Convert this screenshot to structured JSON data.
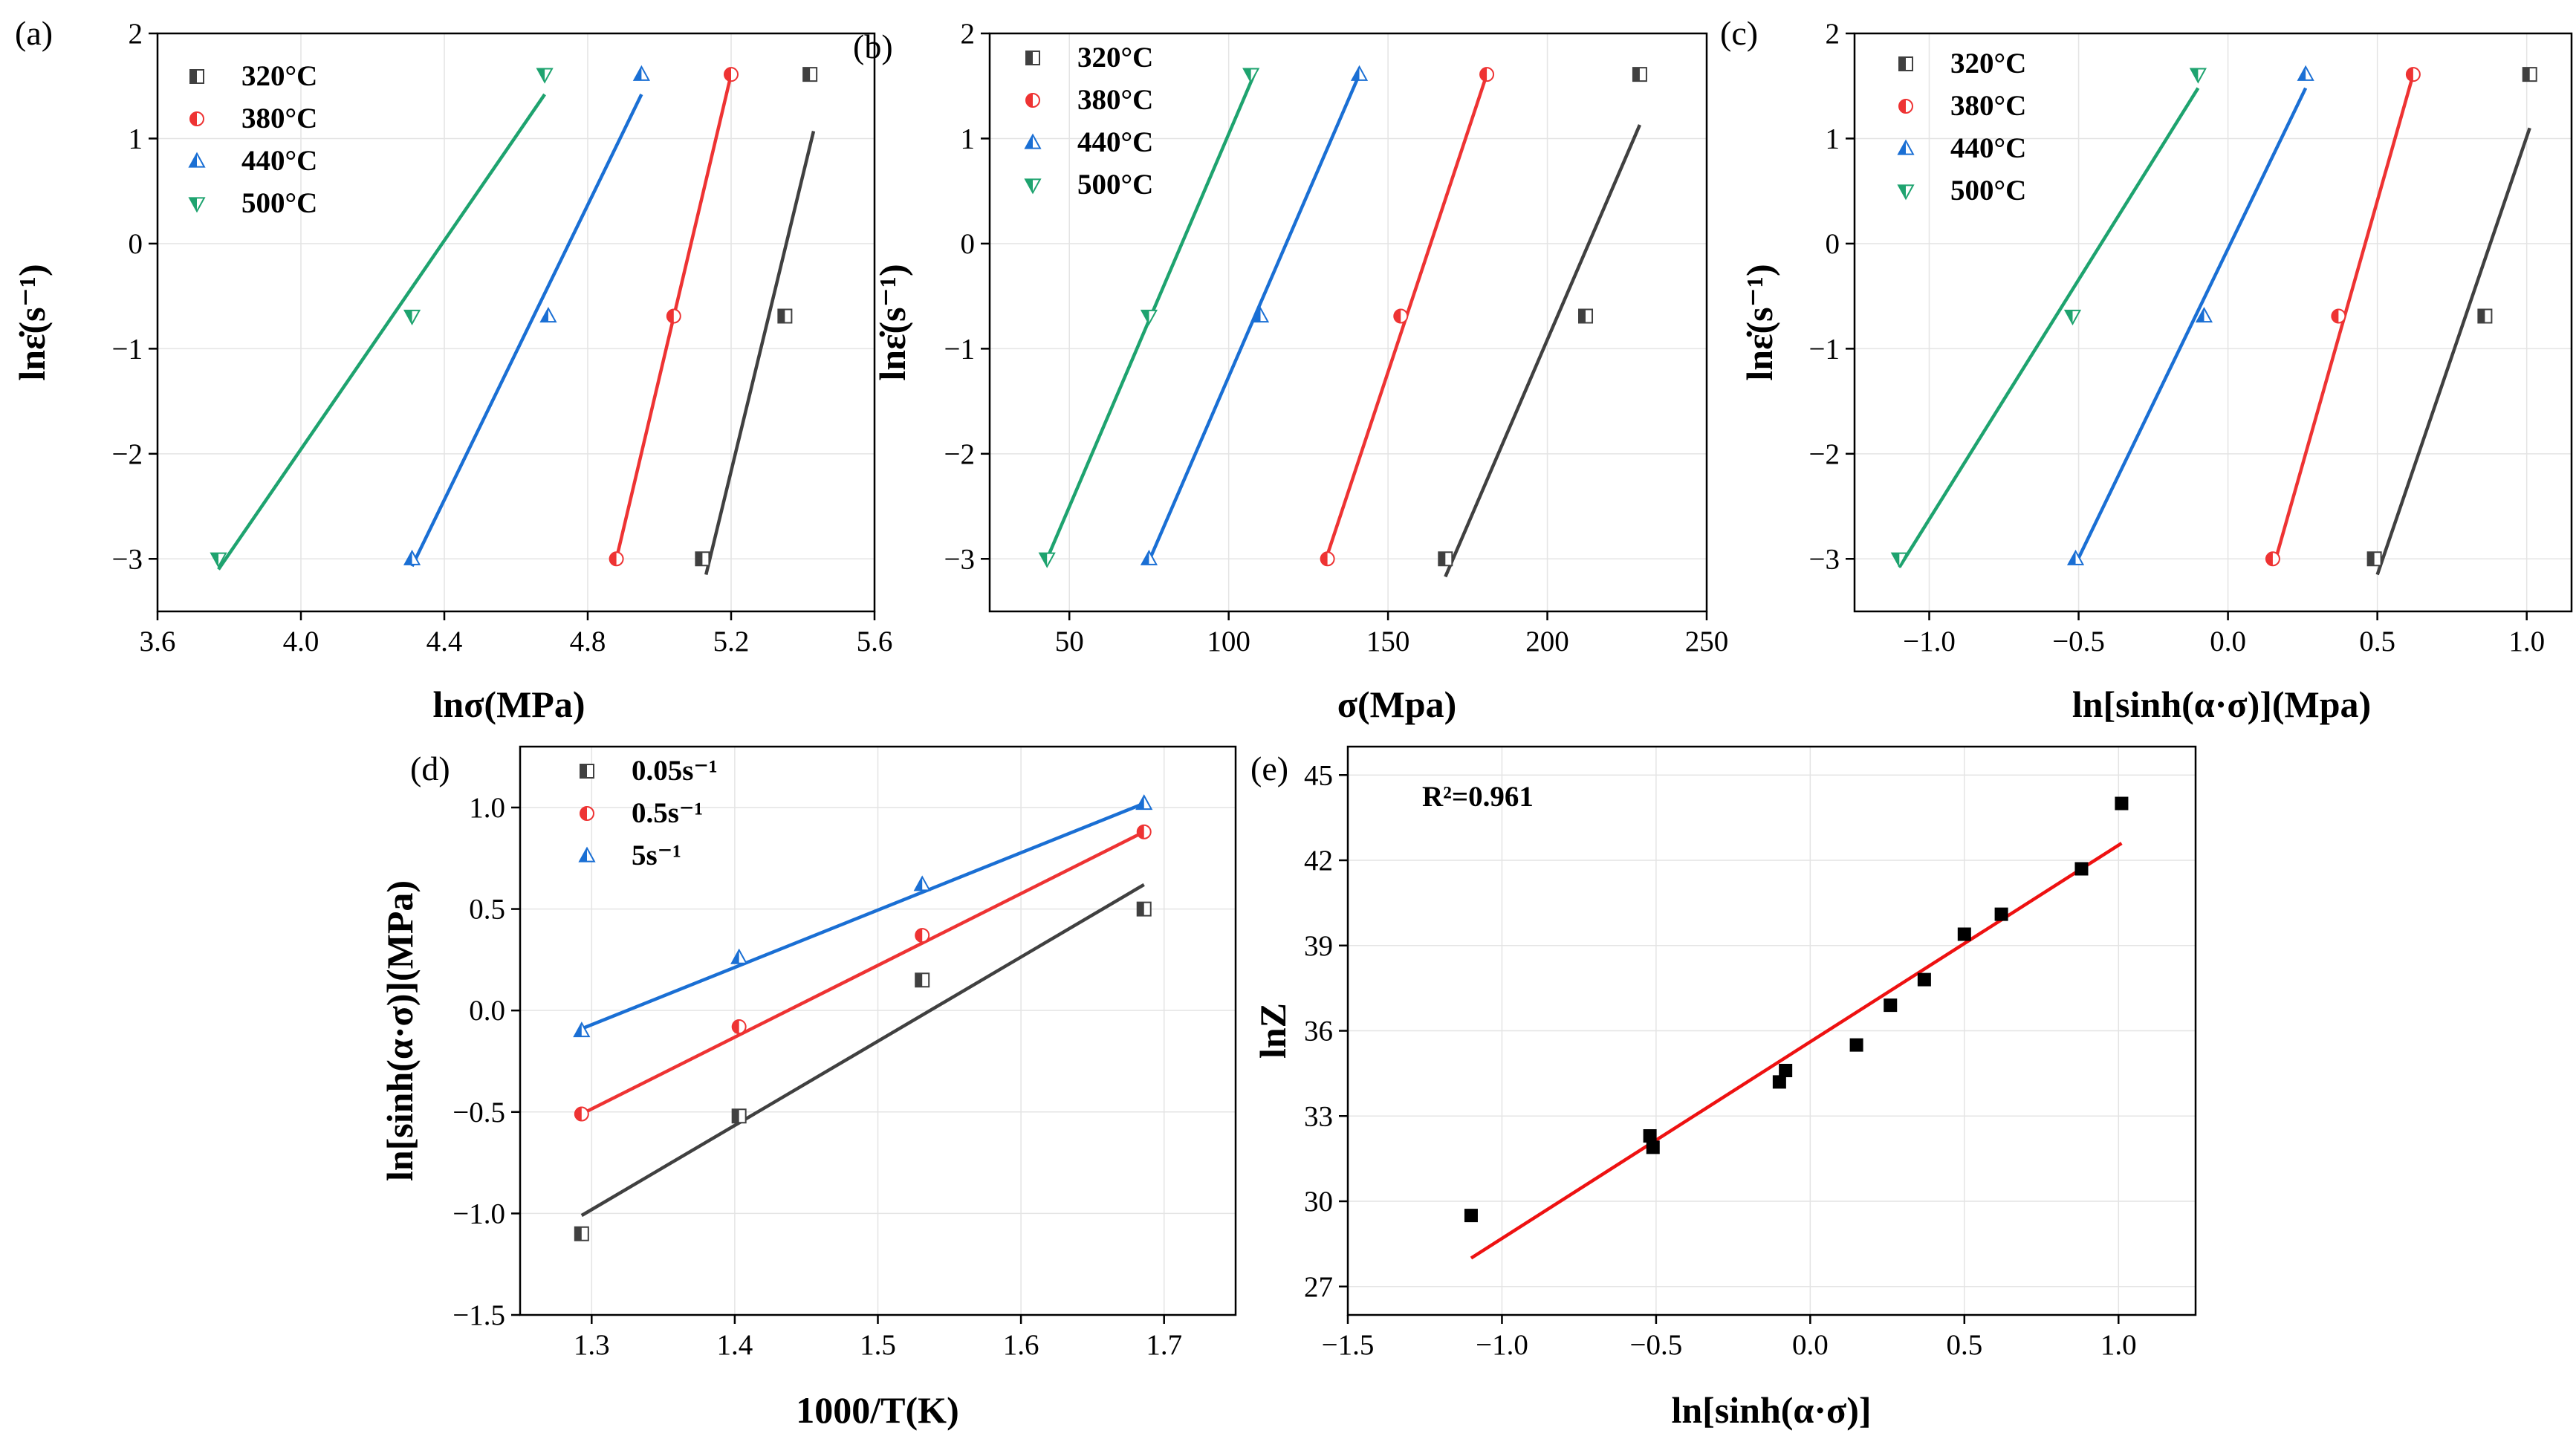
{
  "chart_data": [
    {
      "panel": "(a)",
      "type": "scatter",
      "xlabel": "lnσ(MPa)",
      "ylabel": "lnε̇(s⁻¹)",
      "xlim": [
        3.6,
        5.6
      ],
      "ylim": [
        -3.5,
        2
      ],
      "xticks": [
        "3.6",
        "4.0",
        "4.4",
        "4.8",
        "5.2",
        "5.6"
      ],
      "yticks": [
        "2",
        "1",
        "0",
        "−1",
        "−2",
        "−3"
      ],
      "grid": true,
      "legend": "top-left",
      "series": [
        {
          "name": "320°C",
          "color": "#404040",
          "marker": "square-half",
          "x": [
            5.12,
            5.35,
            5.42
          ],
          "y": [
            -3.0,
            -0.69,
            1.61
          ],
          "fit": [
            [
              5.13,
              -3.15
            ],
            [
              5.43,
              1.07
            ]
          ]
        },
        {
          "name": "380°C",
          "color": "#ee3333",
          "marker": "circle-half",
          "x": [
            4.88,
            5.04,
            5.2
          ],
          "y": [
            -3.0,
            -0.69,
            1.61
          ],
          "fit": [
            [
              4.88,
              -3.0
            ],
            [
              5.2,
              1.61
            ]
          ]
        },
        {
          "name": "440°C",
          "color": "#1a6fd4",
          "marker": "triangle-up-half",
          "x": [
            4.31,
            4.69,
            4.95
          ],
          "y": [
            -3.0,
            -0.69,
            1.61
          ],
          "fit": [
            [
              4.31,
              -3.07
            ],
            [
              4.95,
              1.42
            ]
          ]
        },
        {
          "name": "500°C",
          "color": "#1ea36f",
          "marker": "triangle-down-half",
          "x": [
            3.77,
            4.31,
            4.68
          ],
          "y": [
            -3.0,
            -0.69,
            1.61
          ],
          "fit": [
            [
              3.77,
              -3.1
            ],
            [
              4.68,
              1.42
            ]
          ]
        }
      ]
    },
    {
      "panel": "(b)",
      "type": "scatter",
      "xlabel": "σ(Mpa)",
      "ylabel": "lnε̇(s⁻¹)",
      "xlim": [
        25,
        250
      ],
      "ylim": [
        -3.5,
        2
      ],
      "xticks": [
        "50",
        "100",
        "150",
        "200",
        "250"
      ],
      "yticks": [
        "2",
        "1",
        "0",
        "−1",
        "−2",
        "−3"
      ],
      "grid": true,
      "legend": "top-left",
      "series": [
        {
          "name": "320°C",
          "color": "#404040",
          "marker": "square-half",
          "x": [
            168,
            212,
            229
          ],
          "y": [
            -3.0,
            -0.69,
            1.61
          ],
          "fit": [
            [
              168,
              -3.17
            ],
            [
              229,
              1.13
            ]
          ]
        },
        {
          "name": "380°C",
          "color": "#ee3333",
          "marker": "circle-half",
          "x": [
            131,
            154,
            181
          ],
          "y": [
            -3.0,
            -0.69,
            1.61
          ],
          "fit": [
            [
              130,
              -3.05
            ],
            [
              181,
              1.61
            ]
          ]
        },
        {
          "name": "440°C",
          "color": "#1a6fd4",
          "marker": "triangle-up-half",
          "x": [
            75,
            110,
            141
          ],
          "y": [
            -3.0,
            -0.69,
            1.61
          ],
          "fit": [
            [
              75,
              -3.02
            ],
            [
              141,
              1.61
            ]
          ]
        },
        {
          "name": "500°C",
          "color": "#1ea36f",
          "marker": "triangle-down-half",
          "x": [
            43,
            75,
            107
          ],
          "y": [
            -3.0,
            -0.69,
            1.61
          ],
          "fit": [
            [
              43,
              -3.0
            ],
            [
              108,
              1.61
            ]
          ]
        }
      ]
    },
    {
      "panel": "(c)",
      "type": "scatter",
      "xlabel": "ln[sinh(α·σ)](Mpa)",
      "ylabel": "lnε̇(s⁻¹)",
      "xlim": [
        -1.25,
        1.15
      ],
      "ylim": [
        -3.5,
        2
      ],
      "xticks": [
        "−1.0",
        "−0.5",
        "0.0",
        "0.5",
        "1.0"
      ],
      "yticks": [
        "2",
        "1",
        "0",
        "−1",
        "−2",
        "−3"
      ],
      "grid": true,
      "legend": "top-left",
      "series": [
        {
          "name": "320°C",
          "color": "#404040",
          "marker": "square-half",
          "x": [
            0.49,
            0.86,
            1.01
          ],
          "y": [
            -3.0,
            -0.69,
            1.61
          ],
          "fit": [
            [
              0.5,
              -3.15
            ],
            [
              1.01,
              1.1
            ]
          ]
        },
        {
          "name": "380°C",
          "color": "#ee3333",
          "marker": "circle-half",
          "x": [
            0.15,
            0.37,
            0.62
          ],
          "y": [
            -3.0,
            -0.69,
            1.61
          ],
          "fit": [
            [
              0.16,
              -3.0
            ],
            [
              0.62,
              1.61
            ]
          ]
        },
        {
          "name": "440°C",
          "color": "#1a6fd4",
          "marker": "triangle-up-half",
          "x": [
            -0.51,
            -0.08,
            0.26
          ],
          "y": [
            -3.0,
            -0.69,
            1.61
          ],
          "fit": [
            [
              -0.51,
              -3.05
            ],
            [
              0.26,
              1.48
            ]
          ]
        },
        {
          "name": "500°C",
          "color": "#1ea36f",
          "marker": "triangle-down-half",
          "x": [
            -1.1,
            -0.52,
            -0.1
          ],
          "y": [
            -3.0,
            -0.69,
            1.61
          ],
          "fit": [
            [
              -1.1,
              -3.08
            ],
            [
              -0.1,
              1.48
            ]
          ]
        }
      ]
    },
    {
      "panel": "(d)",
      "type": "scatter",
      "xlabel": "1000/T(K)",
      "ylabel": "ln[sinh(α·σ)](MPa)",
      "xlim": [
        1.25,
        1.75
      ],
      "ylim": [
        -1.5,
        1.3
      ],
      "xticks": [
        "1.3",
        "1.4",
        "1.5",
        "1.6",
        "1.7"
      ],
      "yticks": [
        "1.0",
        "0.5",
        "0.0",
        "−0.5",
        "−1.0",
        "−1.5"
      ],
      "grid": true,
      "legend": "top-left",
      "series": [
        {
          "name": "0.05s⁻¹",
          "color": "#404040",
          "marker": "square-half",
          "x": [
            1.293,
            1.403,
            1.531,
            1.686
          ],
          "y": [
            -1.1,
            -0.52,
            0.15,
            0.5
          ],
          "fit": [
            [
              1.293,
              -1.01
            ],
            [
              1.686,
              0.62
            ]
          ]
        },
        {
          "name": "0.5s⁻¹",
          "color": "#ee3333",
          "marker": "circle-half",
          "x": [
            1.293,
            1.403,
            1.531,
            1.686
          ],
          "y": [
            -0.51,
            -0.08,
            0.37,
            0.88
          ],
          "fit": [
            [
              1.293,
              -0.51
            ],
            [
              1.686,
              0.88
            ]
          ]
        },
        {
          "name": "5s⁻¹",
          "color": "#1a6fd4",
          "marker": "triangle-up-half",
          "x": [
            1.293,
            1.403,
            1.531,
            1.686
          ],
          "y": [
            -0.1,
            0.26,
            0.62,
            1.02
          ],
          "fit": [
            [
              1.293,
              -0.09
            ],
            [
              1.686,
              1.02
            ]
          ]
        }
      ]
    },
    {
      "panel": "(e)",
      "type": "scatter",
      "xlabel": "ln[sinh(α·σ)]",
      "ylabel": "lnZ",
      "xlim": [
        -1.5,
        1.25
      ],
      "ylim": [
        26,
        46
      ],
      "xticks": [
        "−1.5",
        "−1.0",
        "−0.5",
        "0.0",
        "0.5",
        "1.0"
      ],
      "yticks": [
        "45",
        "42",
        "39",
        "36",
        "33",
        "30",
        "27"
      ],
      "grid": true,
      "annotation": "R²=0.961",
      "series": [
        {
          "color": "#000000",
          "marker": "square",
          "x": [
            -1.1,
            -0.52,
            -0.51,
            -0.1,
            -0.08,
            0.15,
            0.26,
            0.37,
            0.5,
            0.62,
            0.88,
            1.01
          ],
          "y": [
            29.5,
            32.3,
            31.9,
            34.2,
            34.6,
            35.5,
            36.9,
            37.8,
            39.4,
            40.1,
            41.7,
            44.0
          ],
          "fit": [
            [
              -1.1,
              28.0
            ],
            [
              1.01,
              42.6
            ]
          ],
          "fit_color": "#ee1111"
        }
      ]
    }
  ]
}
